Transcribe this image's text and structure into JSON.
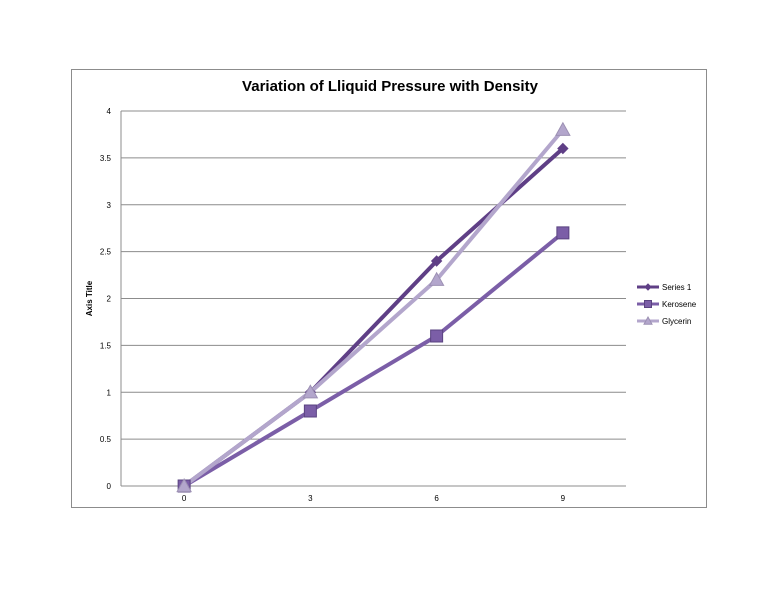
{
  "chart_data": {
    "type": "line",
    "title": "Variation of Lliquid Pressure with Density",
    "xlabel": "",
    "ylabel": "Axis Title",
    "x": [
      0,
      3,
      6,
      9
    ],
    "ylim": [
      0,
      4
    ],
    "yticks": [
      0,
      0.5,
      1,
      1.5,
      2,
      2.5,
      3,
      3.5,
      4
    ],
    "ytick_labels": [
      "0",
      "0.5",
      "1",
      "1.5",
      "2",
      "2.5",
      "3",
      "3.5",
      "4"
    ],
    "grid": true,
    "legend_position": "right",
    "series": [
      {
        "name": "Series 1",
        "values": [
          0,
          1.0,
          2.4,
          3.6
        ],
        "color": "#5f3f86",
        "marker": "diamond"
      },
      {
        "name": "Kerosene",
        "values": [
          0,
          0.8,
          1.6,
          2.7
        ],
        "color": "#7b5ea7",
        "marker": "square"
      },
      {
        "name": "Glycerin",
        "values": [
          0,
          1.0,
          2.2,
          3.8
        ],
        "color": "#b3a6cc",
        "marker": "triangle"
      }
    ]
  }
}
